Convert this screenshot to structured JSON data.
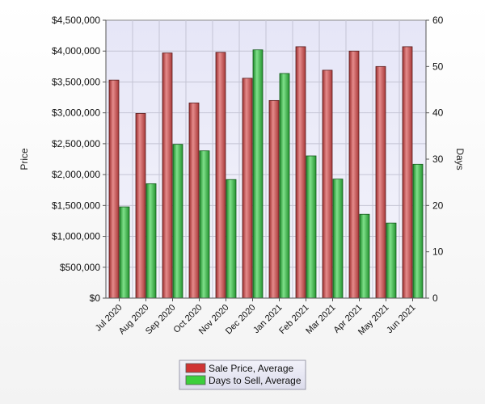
{
  "chart_data": {
    "type": "bar",
    "categories": [
      "Jul 2020",
      "Aug 2020",
      "Sep 2020",
      "Oct 2020",
      "Nov 2020",
      "Dec 2020",
      "Jan 2021",
      "Feb 2021",
      "Mar 2021",
      "Apr 2021",
      "May 2021",
      "Jun 2021"
    ],
    "series": [
      {
        "name": "Sale Price, Average",
        "axis": "left",
        "color": "#c85a5a",
        "values": [
          3530000,
          2990000,
          3970000,
          3160000,
          3980000,
          3560000,
          3200000,
          4070000,
          3690000,
          4000000,
          3750000,
          4070000
        ]
      },
      {
        "name": "Days to Sell, Average",
        "axis": "right",
        "color": "#3cb84a",
        "values": [
          19.7,
          24.7,
          33.2,
          31.8,
          25.6,
          53.6,
          48.5,
          30.7,
          25.7,
          18.1,
          16.2,
          28.9
        ]
      }
    ],
    "ylabel": "Price",
    "y2label": "Days",
    "ylim": [
      0,
      4500000
    ],
    "y2lim": [
      0,
      60
    ],
    "yticks": [
      "$0",
      "$500,000",
      "$1,000,000",
      "$1,500,000",
      "$2,000,000",
      "$2,500,000",
      "$3,000,000",
      "$3,500,000",
      "$4,000,000",
      "$4,500,000"
    ],
    "y2ticks": [
      "0",
      "10",
      "20",
      "30",
      "40",
      "50",
      "60"
    ],
    "grid": true,
    "legend_position": "bottom"
  }
}
